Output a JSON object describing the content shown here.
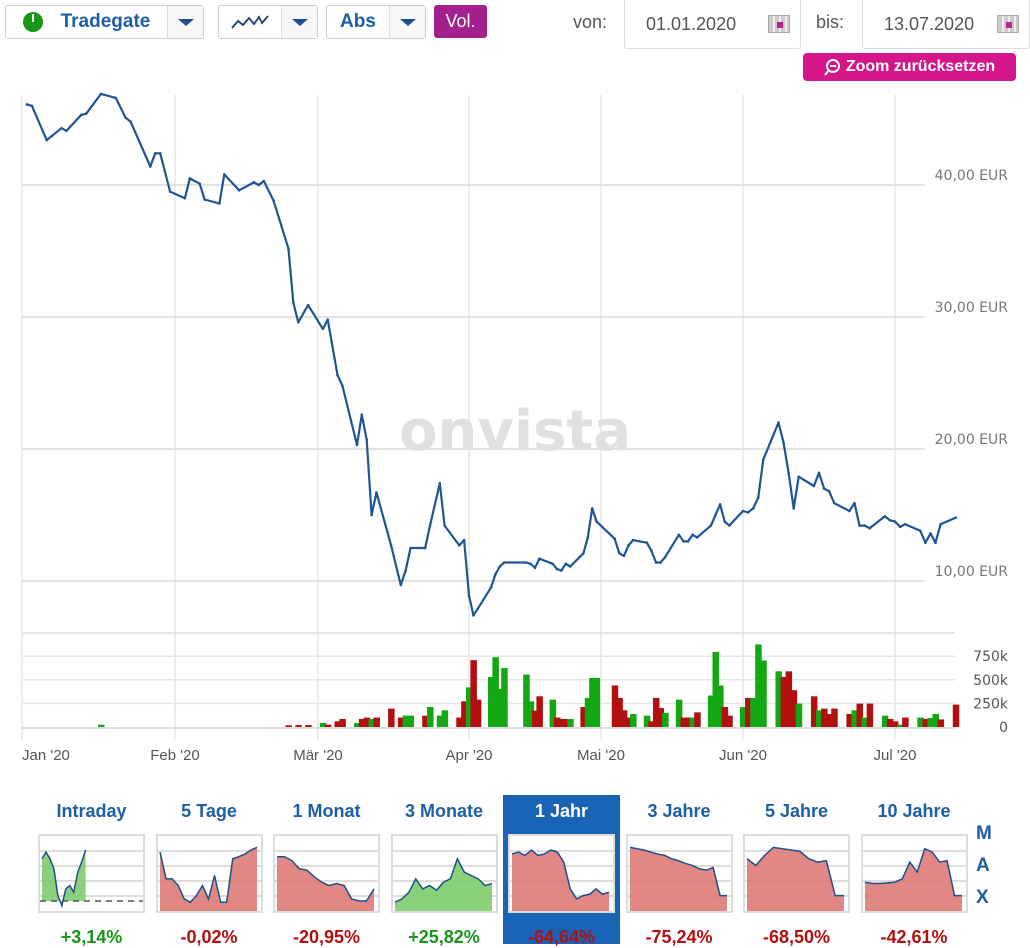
{
  "toolbar": {
    "exchange": "Tradegate",
    "exchange_status_icon": "power-green-icon",
    "chart_type_icon": "line-chart-icon",
    "scale": "Abs",
    "volume_button": "Vol.",
    "from_label": "von:",
    "from_date": "01.01.2020",
    "to_label": "bis:",
    "to_date": "13.07.2020",
    "zoom_reset": "Zoom zurücksetzen"
  },
  "colors": {
    "line": "#1d5597",
    "up": "#13a813",
    "down": "#b20f0f",
    "accent": "#d4168a",
    "vol": "#a3218f",
    "selected": "#1a64b8"
  },
  "watermark": "onvista",
  "chart_data": {
    "type": "line",
    "x_ticks": [
      "Jan '20",
      "Feb '20",
      "Mär '20",
      "Apr '20",
      "Mai '20",
      "Jun '20",
      "Jul '20"
    ],
    "y_ticks": [
      {
        "v": 10,
        "label": "10,00 EUR"
      },
      {
        "v": 20,
        "label": "20,00 EUR"
      },
      {
        "v": 30,
        "label": "30,00 EUR"
      },
      {
        "v": 40,
        "label": "40,00 EUR"
      }
    ],
    "vol_ticks": [
      {
        "v": 0,
        "label": "0"
      },
      {
        "v": 250,
        "label": "250k"
      },
      {
        "v": 500,
        "label": "500k"
      },
      {
        "v": 750,
        "label": "750k"
      }
    ],
    "ylim": [
      6.7,
      47.5
    ],
    "grid": true,
    "columns": [
      "date",
      "price_eur",
      "volume_k",
      "volume_color"
    ],
    "points": [
      [
        "2020-01-02",
        46.1,
        0,
        "u"
      ],
      [
        "2020-01-03",
        46.0,
        0,
        "d"
      ],
      [
        "2020-01-06",
        43.4,
        0,
        "d"
      ],
      [
        "2020-01-07",
        43.7,
        0,
        "u"
      ],
      [
        "2020-01-09",
        44.3,
        0,
        "u"
      ],
      [
        "2020-01-10",
        44.1,
        0,
        "d"
      ],
      [
        "2020-01-13",
        45.3,
        0,
        "u"
      ],
      [
        "2020-01-14",
        45.4,
        0,
        "u"
      ],
      [
        "2020-01-17",
        46.9,
        25,
        "u"
      ],
      [
        "2020-01-20",
        46.6,
        0,
        "d"
      ],
      [
        "2020-01-22",
        45.1,
        0,
        "d"
      ],
      [
        "2020-01-23",
        44.8,
        0,
        "d"
      ],
      [
        "2020-01-27",
        41.4,
        0,
        "d"
      ],
      [
        "2020-01-28",
        42.4,
        0,
        "u"
      ],
      [
        "2020-01-29",
        42.4,
        0,
        "u"
      ],
      [
        "2020-01-31",
        39.5,
        0,
        "d"
      ],
      [
        "2020-02-03",
        39.0,
        0,
        "d"
      ],
      [
        "2020-02-04",
        40.5,
        0,
        "u"
      ],
      [
        "2020-02-06",
        40.1,
        0,
        "d"
      ],
      [
        "2020-02-07",
        38.9,
        0,
        "d"
      ],
      [
        "2020-02-10",
        38.6,
        0,
        "d"
      ],
      [
        "2020-02-11",
        40.8,
        0,
        "u"
      ],
      [
        "2020-02-14",
        39.6,
        0,
        "d"
      ],
      [
        "2020-02-17",
        40.2,
        0,
        "u"
      ],
      [
        "2020-02-18",
        40.0,
        0,
        "d"
      ],
      [
        "2020-02-19",
        40.3,
        0,
        "u"
      ],
      [
        "2020-02-21",
        38.8,
        0,
        "d"
      ],
      [
        "2020-02-24",
        35.2,
        18,
        "d"
      ],
      [
        "2020-02-25",
        31.1,
        0,
        "d"
      ],
      [
        "2020-02-26",
        29.6,
        20,
        "d"
      ],
      [
        "2020-02-28",
        30.9,
        20,
        "d"
      ],
      [
        "2020-03-02",
        29.1,
        42,
        "u"
      ],
      [
        "2020-03-03",
        29.8,
        25,
        "d"
      ],
      [
        "2020-03-05",
        25.6,
        60,
        "d"
      ],
      [
        "2020-03-06",
        24.8,
        85,
        "d"
      ],
      [
        "2020-03-09",
        20.3,
        42,
        "u"
      ],
      [
        "2020-03-10",
        22.6,
        85,
        "d"
      ],
      [
        "2020-03-11",
        20.7,
        100,
        "d"
      ],
      [
        "2020-03-12",
        15.0,
        85,
        "u"
      ],
      [
        "2020-03-13",
        16.7,
        100,
        "d"
      ],
      [
        "2020-03-16",
        12.7,
        195,
        "d"
      ],
      [
        "2020-03-18",
        9.7,
        100,
        "d"
      ],
      [
        "2020-03-19",
        10.8,
        120,
        "u"
      ],
      [
        "2020-03-20",
        12.5,
        120,
        "u"
      ],
      [
        "2020-03-23",
        12.5,
        120,
        "d"
      ],
      [
        "2020-03-24",
        14.2,
        212,
        "u"
      ],
      [
        "2020-03-26",
        17.4,
        120,
        "u"
      ],
      [
        "2020-03-27",
        14.2,
        177,
        "u"
      ],
      [
        "2020-03-30",
        12.7,
        100,
        "d"
      ],
      [
        "2020-03-31",
        13.1,
        272,
        "d"
      ],
      [
        "2020-04-01",
        8.9,
        420,
        "u"
      ],
      [
        "2020-04-02",
        7.4,
        708,
        "d"
      ],
      [
        "2020-04-03",
        7.9,
        290,
        "d"
      ],
      [
        "2020-04-06",
        9.5,
        530,
        "u"
      ],
      [
        "2020-04-07",
        10.5,
        740,
        "u"
      ],
      [
        "2020-04-08",
        11.1,
        403,
        "u"
      ],
      [
        "2020-04-09",
        11.4,
        625,
        "u"
      ],
      [
        "2020-04-14",
        11.4,
        555,
        "u"
      ],
      [
        "2020-04-15",
        11.3,
        272,
        "u"
      ],
      [
        "2020-04-16",
        11.0,
        173,
        "d"
      ],
      [
        "2020-04-17",
        11.7,
        325,
        "d"
      ],
      [
        "2020-04-20",
        11.3,
        290,
        "u"
      ],
      [
        "2020-04-21",
        10.9,
        100,
        "d"
      ],
      [
        "2020-04-22",
        10.8,
        85,
        "d"
      ],
      [
        "2020-04-23",
        11.3,
        85,
        "d"
      ],
      [
        "2020-04-24",
        11.1,
        85,
        "u"
      ],
      [
        "2020-04-27",
        12.1,
        212,
        "d"
      ],
      [
        "2020-04-28",
        13.3,
        308,
        "u"
      ],
      [
        "2020-04-29",
        15.5,
        520,
        "u"
      ],
      [
        "2020-04-30",
        14.5,
        520,
        "u"
      ],
      [
        "2020-05-04",
        13.2,
        440,
        "d"
      ],
      [
        "2020-05-05",
        12.1,
        308,
        "d"
      ],
      [
        "2020-05-06",
        11.9,
        177,
        "d"
      ],
      [
        "2020-05-07",
        12.7,
        100,
        "d"
      ],
      [
        "2020-05-08",
        13.1,
        138,
        "u"
      ],
      [
        "2020-05-11",
        12.9,
        120,
        "u"
      ],
      [
        "2020-05-12",
        12.3,
        60,
        "d"
      ],
      [
        "2020-05-13",
        11.4,
        308,
        "d"
      ],
      [
        "2020-05-14",
        11.4,
        200,
        "d"
      ],
      [
        "2020-05-15",
        11.8,
        150,
        "u"
      ],
      [
        "2020-05-18",
        13.5,
        290,
        "u"
      ],
      [
        "2020-05-19",
        13.0,
        100,
        "d"
      ],
      [
        "2020-05-20",
        13.0,
        100,
        "d"
      ],
      [
        "2020-05-21",
        13.5,
        100,
        "u"
      ],
      [
        "2020-05-22",
        13.3,
        155,
        "d"
      ],
      [
        "2020-05-25",
        14.2,
        333,
        "u"
      ],
      [
        "2020-05-26",
        15.0,
        796,
        "u"
      ],
      [
        "2020-05-27",
        15.8,
        440,
        "u"
      ],
      [
        "2020-05-28",
        14.5,
        212,
        "d"
      ],
      [
        "2020-05-29",
        14.2,
        120,
        "d"
      ],
      [
        "2020-06-01",
        15.3,
        212,
        "u"
      ],
      [
        "2020-06-02",
        15.2,
        308,
        "d"
      ],
      [
        "2020-06-03",
        15.5,
        308,
        "u"
      ],
      [
        "2020-06-04",
        16.3,
        875,
        "u"
      ],
      [
        "2020-06-05",
        19.2,
        705,
        "u"
      ],
      [
        "2020-06-08",
        22.0,
        590,
        "u"
      ],
      [
        "2020-06-09",
        20.5,
        530,
        "d"
      ],
      [
        "2020-06-10",
        18.2,
        590,
        "d"
      ],
      [
        "2020-06-11",
        15.5,
        390,
        "d"
      ],
      [
        "2020-06-12",
        17.9,
        248,
        "u"
      ],
      [
        "2020-06-15",
        17.2,
        325,
        "d"
      ],
      [
        "2020-06-16",
        18.2,
        177,
        "u"
      ],
      [
        "2020-06-17",
        17.0,
        195,
        "d"
      ],
      [
        "2020-06-18",
        16.8,
        138,
        "d"
      ],
      [
        "2020-06-19",
        15.9,
        195,
        "d"
      ],
      [
        "2020-06-22",
        15.3,
        138,
        "d"
      ],
      [
        "2020-06-23",
        15.9,
        177,
        "u"
      ],
      [
        "2020-06-24",
        14.2,
        248,
        "d"
      ],
      [
        "2020-06-25",
        14.2,
        100,
        "u"
      ],
      [
        "2020-06-26",
        14.0,
        248,
        "d"
      ],
      [
        "2020-06-29",
        14.9,
        120,
        "u"
      ],
      [
        "2020-06-30",
        14.6,
        85,
        "d"
      ],
      [
        "2020-07-01",
        14.5,
        60,
        "d"
      ],
      [
        "2020-07-02",
        14.1,
        25,
        "u"
      ],
      [
        "2020-07-03",
        14.3,
        100,
        "d"
      ],
      [
        "2020-07-06",
        13.8,
        100,
        "u"
      ],
      [
        "2020-07-07",
        12.9,
        85,
        "d"
      ],
      [
        "2020-07-08",
        13.6,
        95,
        "u"
      ],
      [
        "2020-07-09",
        12.9,
        138,
        "u"
      ],
      [
        "2020-07-10",
        14.3,
        80,
        "d"
      ],
      [
        "2020-07-13",
        14.8,
        237,
        "d"
      ]
    ]
  },
  "periods": [
    {
      "label": "Intraday",
      "change": "+3,14%",
      "dir": "up",
      "day_progress": 0.45,
      "baseline": 12,
      "values": [
        75,
        85,
        75,
        60,
        20,
        5,
        30,
        35,
        25,
        55,
        70,
        88
      ]
    },
    {
      "label": "5 Tage",
      "change": "-0,02%",
      "dir": "down",
      "values": [
        85,
        45,
        45,
        35,
        15,
        10,
        20,
        35,
        15,
        50,
        10,
        10,
        75,
        78,
        82,
        88,
        92
      ]
    },
    {
      "label": "1 Monat",
      "change": "-20,95%",
      "dir": "down",
      "values": [
        78,
        78,
        72,
        60,
        58,
        48,
        40,
        35,
        38,
        35,
        15,
        12,
        12,
        30
      ]
    },
    {
      "label": "3 Monate",
      "change": "+25,82%",
      "dir": "up",
      "values": [
        10,
        15,
        25,
        45,
        30,
        35,
        28,
        40,
        45,
        75,
        55,
        50,
        45,
        35,
        38
      ]
    },
    {
      "label": "1 Jahr",
      "change": "-64,64%",
      "dir": "down",
      "selected": true,
      "values": [
        82,
        85,
        80,
        88,
        80,
        82,
        88,
        85,
        70,
        30,
        15,
        20,
        22,
        30,
        22,
        25
      ]
    },
    {
      "label": "3 Jahre",
      "change": "-75,24%",
      "dir": "down",
      "values": [
        92,
        90,
        88,
        85,
        82,
        80,
        75,
        72,
        68,
        65,
        60,
        58,
        62,
        20,
        20
      ]
    },
    {
      "label": "5 Jahre",
      "change": "-68,50%",
      "dir": "down",
      "values": [
        75,
        65,
        80,
        92,
        90,
        88,
        86,
        75,
        70,
        72,
        20,
        20
      ]
    },
    {
      "label": "10 Jahre",
      "change": "-42,61%",
      "dir": "down",
      "values": [
        40,
        38,
        38,
        39,
        40,
        45,
        70,
        55,
        90,
        85,
        70,
        72,
        20,
        20
      ]
    }
  ],
  "max_link": [
    "M",
    "A",
    "X"
  ]
}
